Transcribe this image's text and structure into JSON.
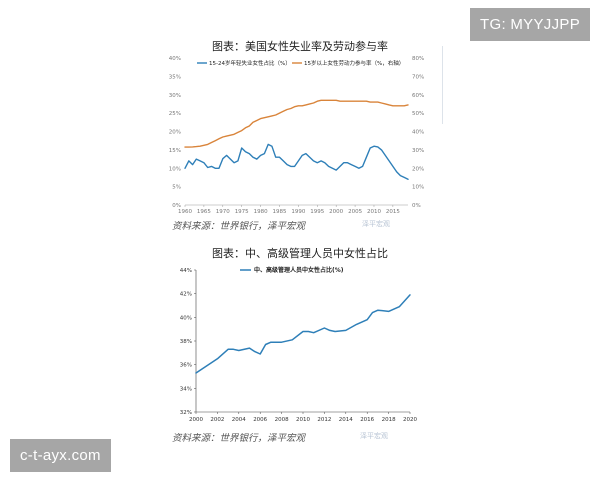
{
  "watermarks": {
    "top_right": "TG: MYYJJPP",
    "bottom_left": "c-t-ayx.com"
  },
  "logo": "泽平宏观",
  "chart_data": [
    {
      "type": "line",
      "title": "图表：美国女性失业率及劳动参与率",
      "source": "资料来源：世界银行，泽平宏观",
      "x_ticks": [
        "1960",
        "1965",
        "1970",
        "1975",
        "1980",
        "1985",
        "1990",
        "1995",
        "2000",
        "2005",
        "2010",
        "2015"
      ],
      "y_left_ticks": [
        "0%",
        "5%",
        "10%",
        "15%",
        "20%",
        "25%",
        "30%",
        "35%",
        "40%"
      ],
      "y_right_ticks": [
        "0%",
        "10%",
        "20%",
        "30%",
        "40%",
        "50%",
        "60%",
        "70%",
        "80%"
      ],
      "ylim_left": [
        0,
        40
      ],
      "ylim_right": [
        0,
        80
      ],
      "xlim": [
        1960,
        2019
      ],
      "series": [
        {
          "name": "15-24岁年轻失业女性占比（%）",
          "axis": "left",
          "color": "#2e7fb8",
          "x": [
            1960,
            1961,
            1962,
            1963,
            1964,
            1965,
            1966,
            1967,
            1968,
            1969,
            1970,
            1971,
            1972,
            1973,
            1974,
            1975,
            1976,
            1977,
            1978,
            1979,
            1980,
            1981,
            1982,
            1983,
            1984,
            1985,
            1986,
            1987,
            1988,
            1989,
            1990,
            1991,
            1992,
            1993,
            1994,
            1995,
            1996,
            1997,
            1998,
            1999,
            2000,
            2001,
            2002,
            2003,
            2004,
            2005,
            2006,
            2007,
            2008,
            2009,
            2010,
            2011,
            2012,
            2013,
            2014,
            2015,
            2016,
            2017,
            2018,
            2019
          ],
          "values": [
            10.0,
            12.0,
            11.0,
            12.5,
            12.0,
            11.5,
            10.2,
            10.5,
            10.0,
            10.0,
            12.6,
            13.5,
            12.5,
            11.5,
            12.0,
            15.5,
            14.5,
            14.0,
            13.0,
            12.5,
            13.5,
            14.0,
            16.5,
            16.0,
            13.0,
            13.0,
            12.0,
            11.0,
            10.5,
            10.5,
            12.0,
            13.5,
            14.0,
            13.0,
            12.0,
            11.5,
            12.0,
            11.5,
            10.5,
            10.0,
            9.5,
            10.5,
            11.5,
            11.5,
            11.0,
            10.5,
            10.0,
            10.5,
            13.0,
            15.5,
            16.0,
            15.8,
            15.0,
            13.5,
            12.0,
            10.5,
            9.0,
            8.0,
            7.5,
            7.0
          ]
        },
        {
          "name": "15岁以上女性劳动力参与率（%，右轴）",
          "axis": "right",
          "color": "#d9843a",
          "x": [
            1960,
            1961,
            1962,
            1963,
            1964,
            1965,
            1966,
            1967,
            1968,
            1969,
            1970,
            1971,
            1972,
            1973,
            1974,
            1975,
            1976,
            1977,
            1978,
            1979,
            1980,
            1981,
            1982,
            1983,
            1984,
            1985,
            1986,
            1987,
            1988,
            1989,
            1990,
            1991,
            1992,
            1993,
            1994,
            1995,
            1996,
            1997,
            1998,
            1999,
            2000,
            2001,
            2002,
            2003,
            2004,
            2005,
            2006,
            2007,
            2008,
            2009,
            2010,
            2011,
            2012,
            2013,
            2014,
            2015,
            2016,
            2017,
            2018,
            2019
          ],
          "values": [
            31.5,
            31.5,
            31.6,
            31.8,
            32.0,
            32.5,
            33.0,
            34.0,
            35.0,
            36.0,
            37.0,
            37.5,
            38.0,
            38.5,
            39.5,
            40.5,
            42.0,
            43.0,
            45.0,
            46.0,
            47.0,
            47.5,
            48.0,
            48.5,
            49.0,
            50.0,
            51.0,
            52.0,
            52.5,
            53.5,
            54.0,
            54.0,
            54.5,
            55.0,
            55.5,
            56.5,
            57.0,
            57.0,
            57.0,
            57.0,
            57.0,
            56.5,
            56.5,
            56.5,
            56.5,
            56.5,
            56.5,
            56.5,
            56.5,
            56.0,
            56.0,
            56.0,
            55.5,
            55.0,
            54.5,
            54.0,
            54.0,
            54.0,
            54.0,
            54.5
          ]
        }
      ]
    },
    {
      "type": "line",
      "title": "图表：中、高级管理人员中女性占比",
      "source": "资料来源：世界银行，泽平宏观",
      "x_ticks": [
        "2000",
        "2002",
        "2004",
        "2006",
        "2008",
        "2010",
        "2012",
        "2014",
        "2016",
        "2018",
        "2020"
      ],
      "y_ticks": [
        "32%",
        "34%",
        "36%",
        "38%",
        "40%",
        "42%",
        "44%"
      ],
      "ylim": [
        32,
        44
      ],
      "xlim": [
        2000,
        2020
      ],
      "series": [
        {
          "name": "中、高级管理人员中女性占比(%)",
          "color": "#2e7fb8",
          "x": [
            2000,
            2001,
            2002,
            2003,
            2003.5,
            2004,
            2005,
            2005.5,
            2006,
            2006.5,
            2007,
            2008,
            2009,
            2010,
            2010.5,
            2011,
            2012,
            2012.5,
            2013,
            2014,
            2015,
            2016,
            2016.5,
            2017,
            2018,
            2019,
            2020
          ],
          "values": [
            35.3,
            35.9,
            36.5,
            37.3,
            37.3,
            37.2,
            37.4,
            37.1,
            36.9,
            37.7,
            37.9,
            37.9,
            38.1,
            38.8,
            38.8,
            38.7,
            39.1,
            38.9,
            38.8,
            38.9,
            39.4,
            39.8,
            40.4,
            40.6,
            40.5,
            40.9,
            41.9
          ]
        }
      ]
    }
  ]
}
